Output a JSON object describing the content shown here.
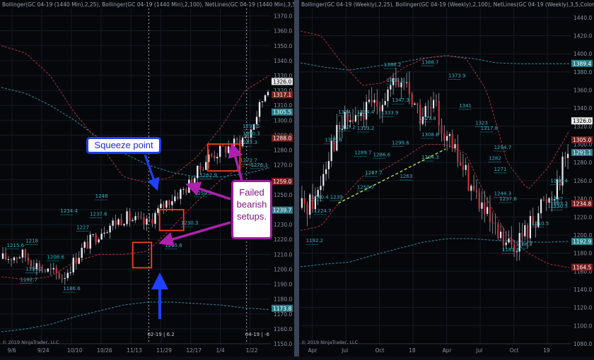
{
  "left_chart": {
    "header": "Bollinger(GC 04-19 (1440 Min),2,25), Bollinger(GC 04-19 (1440 Min),2,100), NetLines(GC 04-19 (1440 Min),3,5,Color",
    "copyright": "© 2019 NinjaTrader, LLC",
    "axis_labels": [
      "1370.0",
      "1360.0",
      "1350.0",
      "1340.0",
      "1330.0",
      "1320.0",
      "1310.0",
      "1300.0",
      "1290.0",
      "1280.0",
      "1270.0",
      "1260.0",
      "1250.0",
      "1240.0",
      "1230.0",
      "1220.0",
      "1210.0",
      "1200.0",
      "1190.0",
      "1180.0",
      "1170.0",
      "1160.0",
      "1150.0"
    ],
    "price_tags": [
      {
        "text": "1326.0",
        "y": 1326.0,
        "bg": "#e8e8e8",
        "fg": "#000000"
      },
      {
        "text": "1317.1",
        "y": 1317.1,
        "bg": "#7a1e1e",
        "fg": "#ffffff"
      },
      {
        "text": "1305.5",
        "y": 1305.5,
        "bg": "#2a7d8a",
        "fg": "#ffffff"
      },
      {
        "text": "1288.0",
        "y": 1288.0,
        "bg": "#7a1e1e",
        "fg": "#ffffff"
      },
      {
        "text": "1259.0",
        "y": 1259.0,
        "bg": "#7a1e1e",
        "fg": "#ffffff"
      },
      {
        "text": "1239.7",
        "y": 1239.7,
        "bg": "#2a7d8a",
        "fg": "#ffffff"
      },
      {
        "text": "1173.8",
        "y": 1173.8,
        "bg": "#2a7d8a",
        "fg": "#ffffff"
      }
    ],
    "x_labels": [
      "9/6",
      "9/24",
      "10/10",
      "10/26",
      "11/13",
      "11/29",
      "12/17",
      "1/4",
      "1/22"
    ],
    "time_markers": [
      "02-19 | 6.2",
      "04-19 | -6"
    ],
    "level_labels": [
      {
        "text": "1248",
        "x": 0.35,
        "y": 1248
      },
      {
        "text": "1237.6",
        "x": 0.33,
        "y": 1236
      },
      {
        "text": "1234.4",
        "x": 0.22,
        "y": 1238
      },
      {
        "text": "1227",
        "x": 0.28,
        "y": 1227
      },
      {
        "text": "1218",
        "x": 0.09,
        "y": 1218
      },
      {
        "text": "1215.6",
        "x": 0.02,
        "y": 1215
      },
      {
        "text": "1208.6",
        "x": 0.17,
        "y": 1207
      },
      {
        "text": "1199.2",
        "x": 0.09,
        "y": 1199
      },
      {
        "text": "1192.7",
        "x": 0.07,
        "y": 1192
      },
      {
        "text": "1186.6",
        "x": 0.23,
        "y": 1186
      },
      {
        "text": "1215.6",
        "x": 0.61,
        "y": 1215
      },
      {
        "text": "1230.3",
        "x": 0.67,
        "y": 1230
      },
      {
        "text": "1250.8",
        "x": 0.72,
        "y": 1250
      },
      {
        "text": "1262.9",
        "x": 0.74,
        "y": 1262
      },
      {
        "text": "1272.7",
        "x": 0.89,
        "y": 1272
      },
      {
        "text": "1276.1",
        "x": 0.93,
        "y": 1269
      },
      {
        "text": "1290.3",
        "x": 0.9,
        "y": 1290
      },
      {
        "text": "1295.5",
        "x": 0.9,
        "y": 1295
      },
      {
        "text": "1283.3",
        "x": 0.89,
        "y": 1284
      }
    ]
  },
  "right_chart": {
    "header": "Bollinger(GC 04-19 (Weekly),2,25), Bollinger(GC 04-19 (Weekly),2,100), NetLines(GC 04-19 (Weekly),3,5,Color [Light5",
    "copyright": "© 2019 NinjaTrader, LLC",
    "axis_labels": [
      "1440.0",
      "1420.0",
      "1400.0",
      "1380.0",
      "1360.0",
      "1340.0",
      "1320.0",
      "1300.0",
      "1280.0",
      "1260.0",
      "1240.0",
      "1220.0",
      "1200.0",
      "1180.0",
      "1160.0",
      "1140.0",
      "1120.0",
      "1100.0",
      "1080.0"
    ],
    "price_tags": [
      {
        "text": "1389.4",
        "y": 1389.4,
        "bg": "#2a7d8a",
        "fg": "#ffffff"
      },
      {
        "text": "1326.0",
        "y": 1326.0,
        "bg": "#e8e8e8",
        "fg": "#000000"
      },
      {
        "text": "1305.0",
        "y": 1305.0,
        "bg": "#7a1e1e",
        "fg": "#ffffff"
      },
      {
        "text": "1291.1",
        "y": 1291.1,
        "bg": "#2a7d8a",
        "fg": "#ffffff"
      },
      {
        "text": "1234.8",
        "y": 1234.8,
        "bg": "#7a1e1e",
        "fg": "#ffffff"
      },
      {
        "text": "1192.9",
        "y": 1192.9,
        "bg": "#2a7d8a",
        "fg": "#ffffff"
      },
      {
        "text": "1164.5",
        "y": 1164.5,
        "bg": "#7a1e1e",
        "fg": "#ffffff"
      }
    ],
    "x_labels": [
      "Apr",
      "Jul",
      "Oct",
      "18",
      "Apr",
      "Jul",
      "Oct",
      "19"
    ],
    "level_labels": [
      {
        "text": "1386.2",
        "x": 0.31,
        "y": 1386
      },
      {
        "text": "1388.7",
        "x": 0.45,
        "y": 1389
      },
      {
        "text": "1373.9",
        "x": 0.55,
        "y": 1374
      },
      {
        "text": "1369.1",
        "x": 0.32,
        "y": 1369
      },
      {
        "text": "1347.3",
        "x": 0.34,
        "y": 1347
      },
      {
        "text": "1341",
        "x": 0.59,
        "y": 1341
      },
      {
        "text": "1334",
        "x": 0.14,
        "y": 1334
      },
      {
        "text": "1334.4",
        "x": 0.21,
        "y": 1334
      },
      {
        "text": "1333.9",
        "x": 0.3,
        "y": 1333
      },
      {
        "text": "1327.8",
        "x": 0.44,
        "y": 1327
      },
      {
        "text": "1323",
        "x": 0.65,
        "y": 1322
      },
      {
        "text": "1317.8",
        "x": 0.67,
        "y": 1316
      },
      {
        "text": "1317.2",
        "x": 0.14,
        "y": 1317
      },
      {
        "text": "1313.2",
        "x": 0.21,
        "y": 1316
      },
      {
        "text": "1308.6",
        "x": 0.45,
        "y": 1309
      },
      {
        "text": "1305.8",
        "x": 0.09,
        "y": 1303
      },
      {
        "text": "1299.6",
        "x": 0.34,
        "y": 1300
      },
      {
        "text": "1294.7",
        "x": 0.72,
        "y": 1295
      },
      {
        "text": "1289.7",
        "x": 0.2,
        "y": 1289
      },
      {
        "text": "1286.6",
        "x": 0.27,
        "y": 1287
      },
      {
        "text": "1284.3",
        "x": 0.45,
        "y": 1284
      },
      {
        "text": "1282",
        "x": 0.7,
        "y": 1283
      },
      {
        "text": "1271",
        "x": 0.72,
        "y": 1271
      },
      {
        "text": "1267.7",
        "x": 0.24,
        "y": 1267
      },
      {
        "text": "1263",
        "x": 0.37,
        "y": 1263
      },
      {
        "text": "1258.4",
        "x": 0.93,
        "y": 1258
      },
      {
        "text": "1250.7",
        "x": 0.21,
        "y": 1251
      },
      {
        "text": "1244.3",
        "x": 0.72,
        "y": 1244
      },
      {
        "text": "1240.4",
        "x": 0.04,
        "y": 1240
      },
      {
        "text": "1239",
        "x": 0.11,
        "y": 1240
      },
      {
        "text": "1237.6",
        "x": 0.74,
        "y": 1238
      },
      {
        "text": "1237",
        "x": 0.93,
        "y": 1238
      },
      {
        "text": "1233.3",
        "x": 0.93,
        "y": 1233
      },
      {
        "text": "1230.3",
        "x": 0.93,
        "y": 1230
      },
      {
        "text": "1224.7",
        "x": 0.05,
        "y": 1225
      },
      {
        "text": "1210.5",
        "x": 0.86,
        "y": 1211
      },
      {
        "text": "1192.2",
        "x": 0.02,
        "y": 1192
      },
      {
        "text": "1186.7",
        "x": 0.8,
        "y": 1188
      },
      {
        "text": "1181.6",
        "x": 0.75,
        "y": 1182
      }
    ]
  },
  "annotations": {
    "squeeze": "Squeeze point",
    "failed_line1": "Failed",
    "failed_line2": "bearish",
    "failed_line3": "setups."
  },
  "chart_data": [
    {
      "type": "candlestick",
      "title": "GC 04-19 (1440 Min)",
      "x_ticks": [
        "9/6",
        "9/24",
        "10/10",
        "10/26",
        "11/13",
        "11/29",
        "12/17",
        "1/4",
        "1/22"
      ],
      "ylim": [
        1150,
        1375
      ],
      "last_price": 1326.0,
      "indicators": {
        "bollinger_25_upper": [
          1350,
          1345,
          1330,
          1305,
          1285,
          1262,
          1258,
          1262,
          1275,
          1295,
          1320,
          1330
        ],
        "bollinger_25_lower": [
          1195,
          1193,
          1195,
          1205,
          1210,
          1210,
          1212,
          1228,
          1245,
          1260,
          1270,
          1268
        ],
        "bollinger_100_upper": [
          1322,
          1318,
          1310,
          1300,
          1288,
          1278,
          1270,
          1265,
          1262,
          1262,
          1264,
          1268
        ],
        "bollinger_100_lower": [
          1158,
          1160,
          1163,
          1168,
          1172,
          1176,
          1178,
          1178,
          1177,
          1176,
          1174,
          1173
        ],
        "close_path": [
          1207,
          1210,
          1200,
          1195,
          1215,
          1228,
          1235,
          1230,
          1245,
          1255,
          1275,
          1282,
          1290,
          1326
        ]
      },
      "price_levels": [
        1326.0,
        1317.1,
        1305.5,
        1288.0,
        1259.0,
        1239.7,
        1173.8
      ],
      "grid": true
    },
    {
      "type": "candlestick",
      "title": "GC 04-19 (Weekly)",
      "x_ticks": [
        "Apr",
        "Jul",
        "Oct",
        "18",
        "Apr",
        "Jul",
        "Oct",
        "19"
      ],
      "ylim": [
        1080,
        1450
      ],
      "last_price": 1326.0,
      "indicators": {
        "bollinger_25_upper": [
          1425,
          1420,
          1390,
          1365,
          1368,
          1385,
          1395,
          1398,
          1395,
          1360,
          1280,
          1250,
          1275,
          1315
        ],
        "bollinger_25_lower": [
          1205,
          1210,
          1240,
          1265,
          1272,
          1285,
          1300,
          1300,
          1290,
          1240,
          1200,
          1180,
          1168,
          1164
        ],
        "bollinger_100_upper": [
          1390,
          1385,
          1382,
          1386,
          1390,
          1395,
          1398,
          1395,
          1390,
          1389,
          1389,
          1389
        ],
        "bollinger_100_lower": [
          1165,
          1168,
          1170,
          1178,
          1185,
          1192,
          1196,
          1196,
          1194,
          1193,
          1192,
          1193
        ],
        "trendline": [
          [
            0.14,
            1235
          ],
          [
            0.54,
            1295
          ]
        ]
      },
      "price_levels": [
        1389.4,
        1326.0,
        1305.0,
        1291.1,
        1234.8,
        1192.9,
        1164.5
      ],
      "grid": true
    }
  ]
}
